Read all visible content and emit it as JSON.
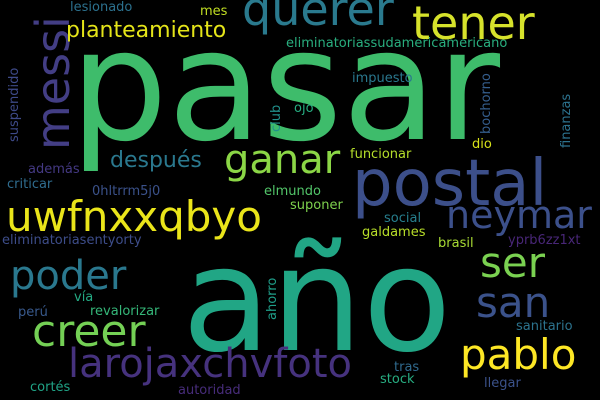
{
  "words": {
    "pasar": {
      "text": "pasar",
      "color": "#3ebc6b"
    },
    "ano": {
      "text": "año",
      "color": "#21a685"
    },
    "postal": {
      "text": "postal",
      "color": "#3c4f8a"
    },
    "tener": {
      "text": "tener",
      "color": "#d6e22b"
    },
    "querer": {
      "text": "querer",
      "color": "#2a7a8e"
    },
    "messi": {
      "text": "messi",
      "color": "#433e85"
    },
    "planteamiento": {
      "text": "planteamiento",
      "color": "#e4e419"
    },
    "ganar": {
      "text": "ganar",
      "color": "#8bd646"
    },
    "uwfnxxqbyo": {
      "text": "uwfnxxqbyo",
      "color": "#eae51a"
    },
    "neymar": {
      "text": "neymar",
      "color": "#3c508b"
    },
    "despues": {
      "text": "después",
      "color": "#2a788e"
    },
    "ser": {
      "text": "ser",
      "color": "#7ad151"
    },
    "poder": {
      "text": "poder",
      "color": "#2a788e"
    },
    "san": {
      "text": "san",
      "color": "#3b528b"
    },
    "creer": {
      "text": "creer",
      "color": "#74d055"
    },
    "pablo": {
      "text": "pablo",
      "color": "#fde725"
    },
    "larojaxchvfoto": {
      "text": "larojaxchvfoto",
      "color": "#46327e"
    },
    "lesionado": {
      "text": "lesionado",
      "color": "#2c718e"
    },
    "mes": {
      "text": "mes",
      "color": "#c2df23"
    },
    "eliminatoriassudamericamericano": {
      "text": "eliminatoriassudamericamericano",
      "color": "#29af7f"
    },
    "suspendido": {
      "text": "suspendido",
      "color": "#3e4a89"
    },
    "ademas": {
      "text": "además",
      "color": "#443983"
    },
    "criticar": {
      "text": "criticar",
      "color": "#2f6c8e"
    },
    "hash": {
      "text": "0hltrrm5j0",
      "color": "#3b528b"
    },
    "eliminatoriasentyorty": {
      "text": "eliminatoriasentyorty",
      "color": "#3d4d8a"
    },
    "peru": {
      "text": "perú",
      "color": "#38598c"
    },
    "via": {
      "text": "vía",
      "color": "#24aa83"
    },
    "revalorizar": {
      "text": "revalorizar",
      "color": "#35b779"
    },
    "cortes": {
      "text": "cortés",
      "color": "#20a386"
    },
    "autoridad": {
      "text": "autoridad",
      "color": "#472c7a"
    },
    "impuesto": {
      "text": "impuesto",
      "color": "#2a788e"
    },
    "club": {
      "text": "club",
      "color": "#21918c"
    },
    "ojo": {
      "text": "ojo",
      "color": "#26ad81"
    },
    "bochorno": {
      "text": "bochorno",
      "color": "#355e8d"
    },
    "finanzas": {
      "text": "finanzas",
      "color": "#2c728e"
    },
    "funcionar": {
      "text": "funcionar",
      "color": "#b5de2b"
    },
    "dio": {
      "text": "dio",
      "color": "#d8e219"
    },
    "elmundo": {
      "text": "elmundo",
      "color": "#52c569"
    },
    "suponer": {
      "text": "suponer",
      "color": "#7fd34e"
    },
    "social": {
      "text": "social",
      "color": "#277f8e"
    },
    "galdames": {
      "text": "galdames",
      "color": "#b8de29"
    },
    "brasil": {
      "text": "brasil",
      "color": "#a8db34"
    },
    "yprb6zz1xt": {
      "text": "yprb6zz1xt",
      "color": "#482677"
    },
    "ahorro": {
      "text": "ahorro",
      "color": "#1f9e89"
    },
    "sanitario": {
      "text": "sanitario",
      "color": "#2c738e"
    },
    "tras": {
      "text": "tras",
      "color": "#306a8e"
    },
    "stock": {
      "text": "stock",
      "color": "#27ad81"
    },
    "llegar": {
      "text": "llegar",
      "color": "#3b528b"
    }
  }
}
